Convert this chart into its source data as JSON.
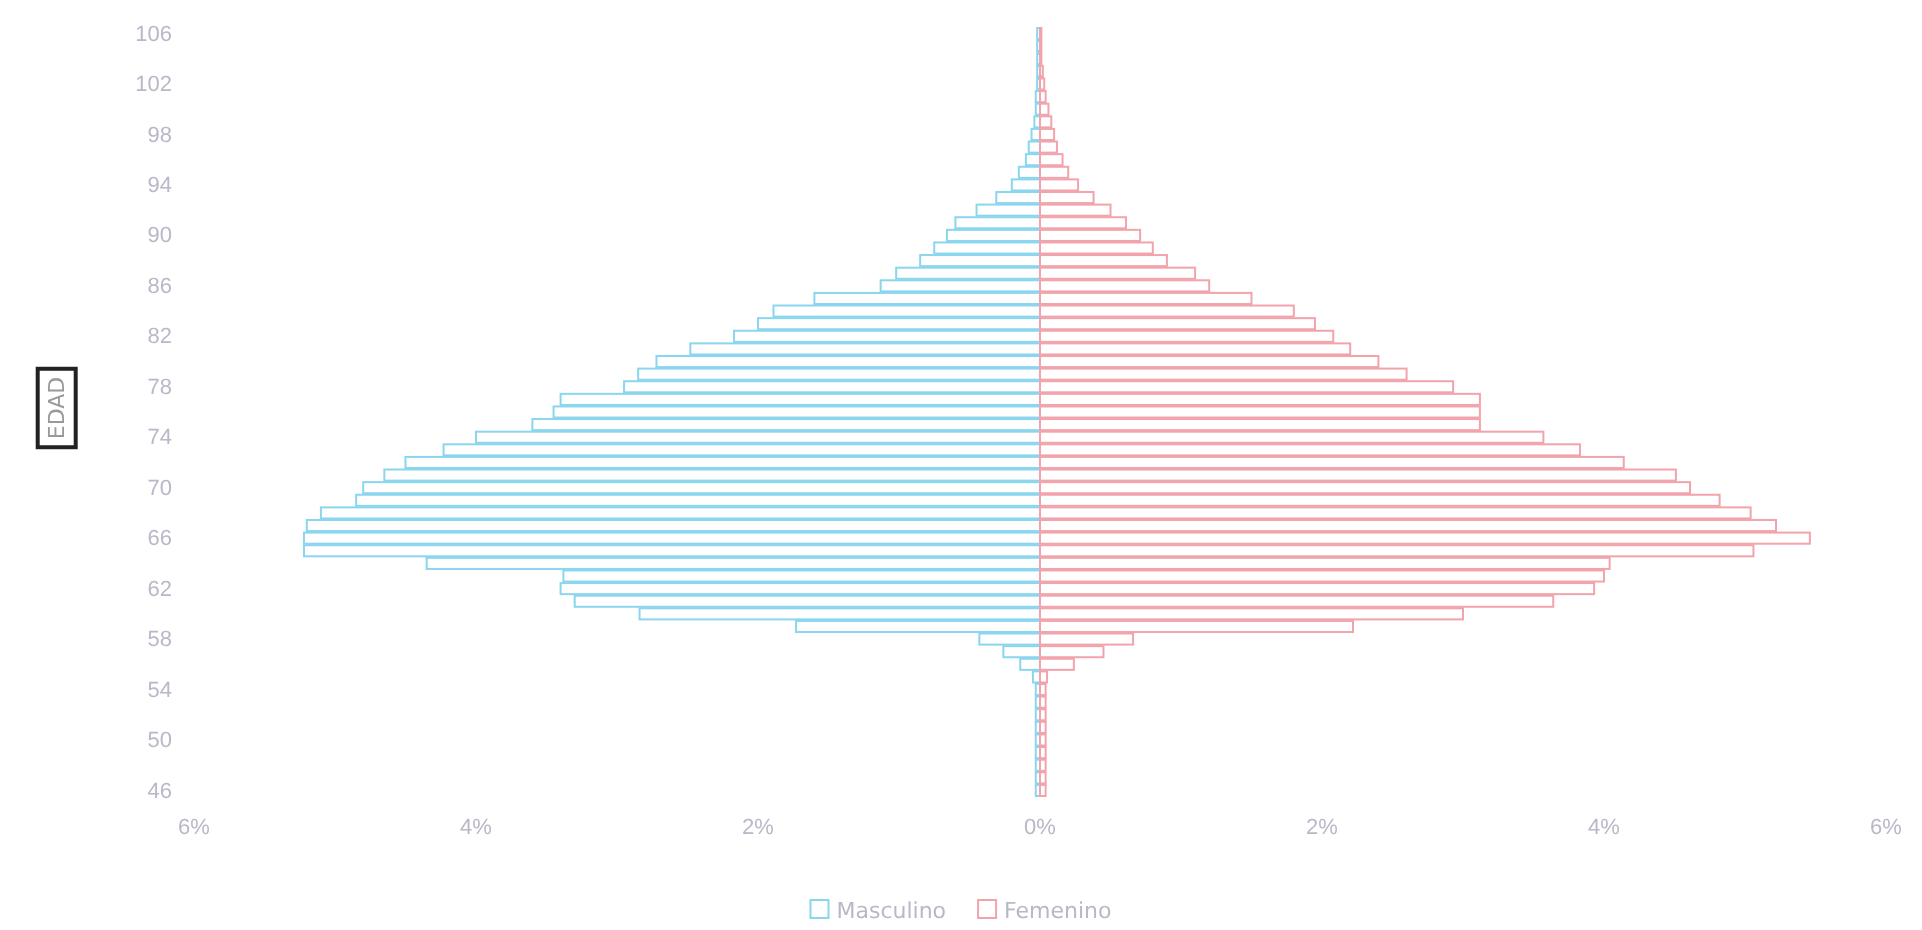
{
  "chart_data": {
    "type": "bar",
    "orientation": "horizontal",
    "ylabel": "EDAD",
    "categories": [
      "106",
      null,
      null,
      null,
      "102",
      null,
      null,
      null,
      "98",
      null,
      null,
      null,
      "94",
      null,
      null,
      null,
      "90",
      null,
      null,
      null,
      "86",
      null,
      null,
      null,
      "82",
      null,
      null,
      null,
      "78",
      null,
      null,
      null,
      "74",
      null,
      null,
      null,
      "70",
      null,
      null,
      null,
      "66",
      null,
      null,
      null,
      "62",
      null,
      null,
      null,
      "58",
      null,
      null,
      null,
      "54",
      null,
      null,
      null,
      "50",
      null,
      null,
      null,
      "46"
    ],
    "series": [
      {
        "name": "Masculino",
        "color": "#8ad6ee",
        "values": [
          -0.02,
          -0.02,
          -0.02,
          -0.02,
          -0.02,
          -0.03,
          -0.03,
          -0.04,
          -0.06,
          -0.08,
          -0.1,
          -0.15,
          -0.2,
          -0.31,
          -0.45,
          -0.6,
          -0.66,
          -0.75,
          -0.85,
          -1.02,
          -1.13,
          -1.6,
          -1.89,
          -2.0,
          -2.17,
          -2.48,
          -2.72,
          -2.85,
          -2.95,
          -3.4,
          -3.45,
          -3.6,
          -4.0,
          -4.23,
          -4.5,
          -4.65,
          -4.8,
          -4.85,
          -5.1,
          -5.2,
          -5.22,
          -5.22,
          -4.35,
          -3.38,
          -3.4,
          -3.3,
          -2.84,
          -1.73,
          -0.43,
          -0.26,
          -0.14,
          -0.05,
          -0.03,
          -0.03,
          -0.03,
          -0.03,
          -0.03,
          -0.03,
          -0.03,
          -0.03,
          -0.03
        ]
      },
      {
        "name": "Femenino",
        "color": "#f2a3ab",
        "values": [
          0.01,
          0.01,
          0.01,
          0.02,
          0.03,
          0.04,
          0.06,
          0.08,
          0.1,
          0.12,
          0.16,
          0.2,
          0.27,
          0.38,
          0.5,
          0.61,
          0.71,
          0.8,
          0.9,
          1.1,
          1.2,
          1.5,
          1.8,
          1.95,
          2.08,
          2.2,
          2.4,
          2.6,
          2.93,
          3.12,
          3.12,
          3.12,
          3.57,
          3.83,
          4.14,
          4.51,
          4.61,
          4.82,
          5.04,
          5.22,
          5.46,
          5.06,
          4.04,
          4.0,
          3.93,
          3.64,
          3.0,
          2.22,
          0.66,
          0.45,
          0.24,
          0.05,
          0.04,
          0.04,
          0.04,
          0.04,
          0.04,
          0.04,
          0.04,
          0.04,
          0.04
        ]
      }
    ],
    "xlim": [
      -6,
      6
    ],
    "xticks": [
      {
        "value": -6,
        "label": "6%"
      },
      {
        "value": -4,
        "label": "4%"
      },
      {
        "value": -2,
        "label": "2%"
      },
      {
        "value": 0,
        "label": "0%"
      },
      {
        "value": 2,
        "label": "2%"
      },
      {
        "value": 4,
        "label": "4%"
      },
      {
        "value": 6,
        "label": "6%"
      }
    ],
    "stacked": true,
    "grid": false,
    "legend": "bottom"
  }
}
